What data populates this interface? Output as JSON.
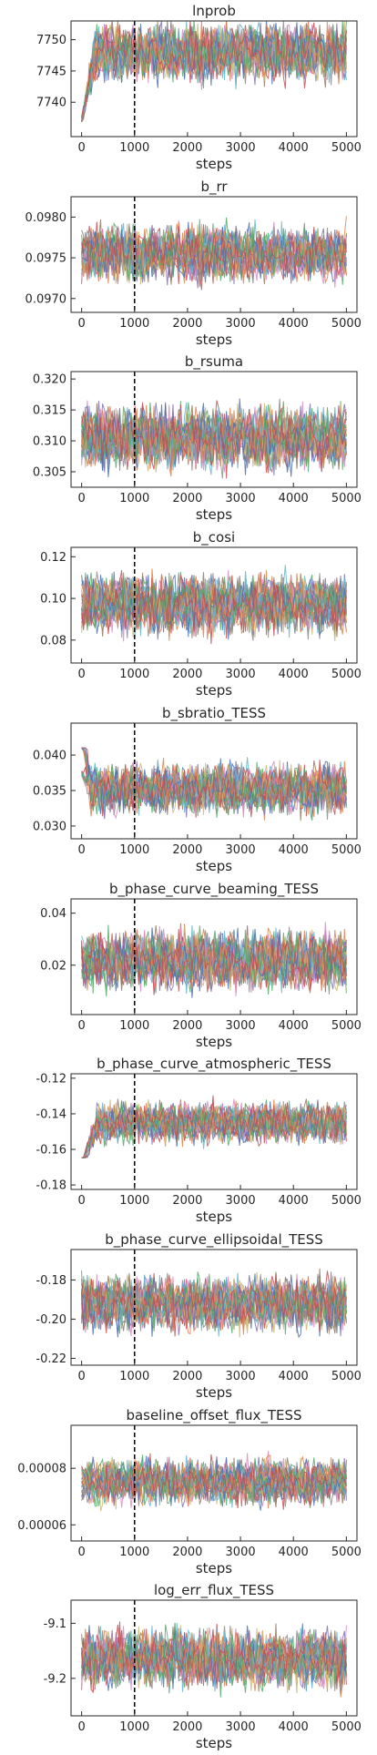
{
  "chart_data": [
    {
      "type": "line",
      "title": "lnprob",
      "xlabel": "steps",
      "ylabel": "",
      "xlim": [
        -200,
        5200
      ],
      "ylim": [
        7734.5,
        7753
      ],
      "xticks": [
        0,
        1000,
        2000,
        3000,
        4000,
        5000
      ],
      "xtick_labels": [
        "0",
        "1000",
        "2000",
        "3000",
        "4000",
        "5000"
      ],
      "yticks": [
        7740,
        7745,
        7750
      ],
      "ytick_labels": [
        "7740",
        "7745",
        "7750"
      ],
      "burn_in_step": 1000,
      "trace_envelope": {
        "start_range": [
          7734.5,
          7740
        ],
        "steady_range": [
          7738,
          7753
        ],
        "steady_center": 7748,
        "settle_step": 250
      },
      "grid": false
    },
    {
      "type": "line",
      "title": "b_rr",
      "xlabel": "steps",
      "ylabel": "",
      "xlim": [
        -200,
        5200
      ],
      "ylim": [
        0.09683,
        0.09825
      ],
      "xticks": [
        0,
        1000,
        2000,
        3000,
        4000,
        5000
      ],
      "xtick_labels": [
        "0",
        "1000",
        "2000",
        "3000",
        "4000",
        "5000"
      ],
      "yticks": [
        0.097,
        0.0975,
        0.098
      ],
      "ytick_labels": [
        "0.0970",
        "0.0975",
        "0.0980"
      ],
      "burn_in_step": 1000,
      "trace_envelope": {
        "start_range": [
          0.097,
          0.0979
        ],
        "steady_range": [
          0.097,
          0.0981
        ],
        "steady_center": 0.09755,
        "settle_step": 0
      },
      "grid": false
    },
    {
      "type": "line",
      "title": "b_rsuma",
      "xlabel": "steps",
      "ylabel": "",
      "xlim": [
        -200,
        5200
      ],
      "ylim": [
        0.3025,
        0.3212
      ],
      "xticks": [
        0,
        1000,
        2000,
        3000,
        4000,
        5000
      ],
      "xtick_labels": [
        "0",
        "1000",
        "2000",
        "3000",
        "4000",
        "5000"
      ],
      "yticks": [
        0.305,
        0.31,
        0.315,
        0.32
      ],
      "ytick_labels": [
        "0.305",
        "0.310",
        "0.315",
        "0.320"
      ],
      "burn_in_step": 1000,
      "trace_envelope": {
        "start_range": [
          0.305,
          0.316
        ],
        "steady_range": [
          0.303,
          0.319
        ],
        "steady_center": 0.3105,
        "settle_step": 0
      },
      "grid": false
    },
    {
      "type": "line",
      "title": "b_cosi",
      "xlabel": "steps",
      "ylabel": "",
      "xlim": [
        -200,
        5200
      ],
      "ylim": [
        0.069,
        0.1245
      ],
      "xticks": [
        0,
        1000,
        2000,
        3000,
        4000,
        5000
      ],
      "xtick_labels": [
        "0",
        "1000",
        "2000",
        "3000",
        "4000",
        "5000"
      ],
      "yticks": [
        0.08,
        0.1,
        0.12
      ],
      "ytick_labels": [
        "0.08",
        "0.10",
        "0.12"
      ],
      "burn_in_step": 1000,
      "trace_envelope": {
        "start_range": [
          0.085,
          0.11
        ],
        "steady_range": [
          0.072,
          0.118
        ],
        "steady_center": 0.097,
        "settle_step": 0
      },
      "grid": false
    },
    {
      "type": "line",
      "title": "b_sbratio_TESS",
      "xlabel": "steps",
      "ylabel": "",
      "xlim": [
        -200,
        5200
      ],
      "ylim": [
        0.0282,
        0.0445
      ],
      "xticks": [
        0,
        1000,
        2000,
        3000,
        4000,
        5000
      ],
      "xtick_labels": [
        "0",
        "1000",
        "2000",
        "3000",
        "4000",
        "5000"
      ],
      "yticks": [
        0.03,
        0.035,
        0.04
      ],
      "ytick_labels": [
        "0.030",
        "0.035",
        "0.040"
      ],
      "burn_in_step": 1000,
      "trace_envelope": {
        "start_range": [
          0.037,
          0.0435
        ],
        "steady_range": [
          0.0295,
          0.041
        ],
        "steady_center": 0.0352,
        "settle_step": 200
      },
      "grid": false
    },
    {
      "type": "line",
      "title": "b_phase_curve_beaming_TESS",
      "xlabel": "steps",
      "ylabel": "",
      "xlim": [
        -200,
        5200
      ],
      "ylim": [
        0.001,
        0.0455
      ],
      "xticks": [
        0,
        1000,
        2000,
        3000,
        4000,
        5000
      ],
      "xtick_labels": [
        "0",
        "1000",
        "2000",
        "3000",
        "4000",
        "5000"
      ],
      "yticks": [
        0.02,
        0.04
      ],
      "ytick_labels": [
        "0.02",
        "0.04"
      ],
      "burn_in_step": 1000,
      "trace_envelope": {
        "start_range": [
          0.01,
          0.035
        ],
        "steady_range": [
          0.003,
          0.04
        ],
        "steady_center": 0.022,
        "settle_step": 0
      },
      "grid": false
    },
    {
      "type": "line",
      "title": "b_phase_curve_atmospheric_TESS",
      "xlabel": "steps",
      "ylabel": "",
      "xlim": [
        -200,
        5200
      ],
      "ylim": [
        -0.1825,
        -0.1175
      ],
      "xticks": [
        0,
        1000,
        2000,
        3000,
        4000,
        5000
      ],
      "xtick_labels": [
        "0",
        "1000",
        "2000",
        "3000",
        "4000",
        "5000"
      ],
      "yticks": [
        -0.18,
        -0.16,
        -0.14,
        -0.12
      ],
      "ytick_labels": [
        "-0.18",
        "-0.16",
        "-0.14",
        "-0.12"
      ],
      "burn_in_step": 1000,
      "trace_envelope": {
        "start_range": [
          -0.18,
          -0.165
        ],
        "steady_range": [
          -0.162,
          -0.125
        ],
        "steady_center": -0.145,
        "settle_step": 300
      },
      "grid": false
    },
    {
      "type": "line",
      "title": "b_phase_curve_ellipsoidal_TESS",
      "xlabel": "steps",
      "ylabel": "",
      "xlim": [
        -200,
        5200
      ],
      "ylim": [
        -0.2235,
        -0.1645
      ],
      "xticks": [
        0,
        1000,
        2000,
        3000,
        4000,
        5000
      ],
      "xtick_labels": [
        "0",
        "1000",
        "2000",
        "3000",
        "4000",
        "5000"
      ],
      "yticks": [
        -0.22,
        -0.2,
        -0.18
      ],
      "ytick_labels": [
        "-0.22",
        "-0.20",
        "-0.18"
      ],
      "burn_in_step": 1000,
      "trace_envelope": {
        "start_range": [
          -0.2,
          -0.185
        ],
        "steady_range": [
          -0.215,
          -0.17
        ],
        "steady_center": -0.192,
        "settle_step": 0
      },
      "grid": false
    },
    {
      "type": "line",
      "title": "baseline_offset_flux_TESS",
      "xlabel": "steps",
      "ylabel": "",
      "xlim": [
        -200,
        5200
      ],
      "ylim": [
        5.43e-05,
        9.52e-05
      ],
      "xticks": [
        0,
        1000,
        2000,
        3000,
        4000,
        5000
      ],
      "xtick_labels": [
        "0",
        "1000",
        "2000",
        "3000",
        "4000",
        "5000"
      ],
      "yticks": [
        6e-05,
        8e-05
      ],
      "ytick_labels": [
        "0.00006",
        "0.00008"
      ],
      "burn_in_step": 1000,
      "trace_envelope": {
        "start_range": [
          5.6e-05,
          9.3e-05
        ],
        "steady_range": [
          6.2e-05,
          8.8e-05
        ],
        "steady_center": 7.52e-05,
        "settle_step": 100
      },
      "grid": false
    },
    {
      "type": "line",
      "title": "log_err_flux_TESS",
      "xlabel": "steps",
      "ylabel": "",
      "xlim": [
        -200,
        5200
      ],
      "ylim": [
        -9.268,
        -9.058
      ],
      "xticks": [
        0,
        1000,
        2000,
        3000,
        4000,
        5000
      ],
      "xtick_labels": [
        "0",
        "1000",
        "2000",
        "3000",
        "4000",
        "5000"
      ],
      "yticks": [
        -9.2,
        -9.1
      ],
      "ytick_labels": [
        "-9.2",
        "-9.1"
      ],
      "burn_in_step": 1000,
      "trace_envelope": {
        "start_range": [
          -9.19,
          -9.14
        ],
        "steady_range": [
          -9.25,
          -9.08
        ],
        "steady_center": -9.165,
        "settle_step": 0
      },
      "grid": false
    }
  ],
  "colors": {
    "burn_in_line": "#000000",
    "axis": "#262626",
    "walkers": [
      "#4c72b0",
      "#dd8452",
      "#55a868",
      "#c44e52",
      "#8172b3",
      "#937860",
      "#da8bc3",
      "#8c8c8c",
      "#ccb974",
      "#64b5cd"
    ]
  }
}
